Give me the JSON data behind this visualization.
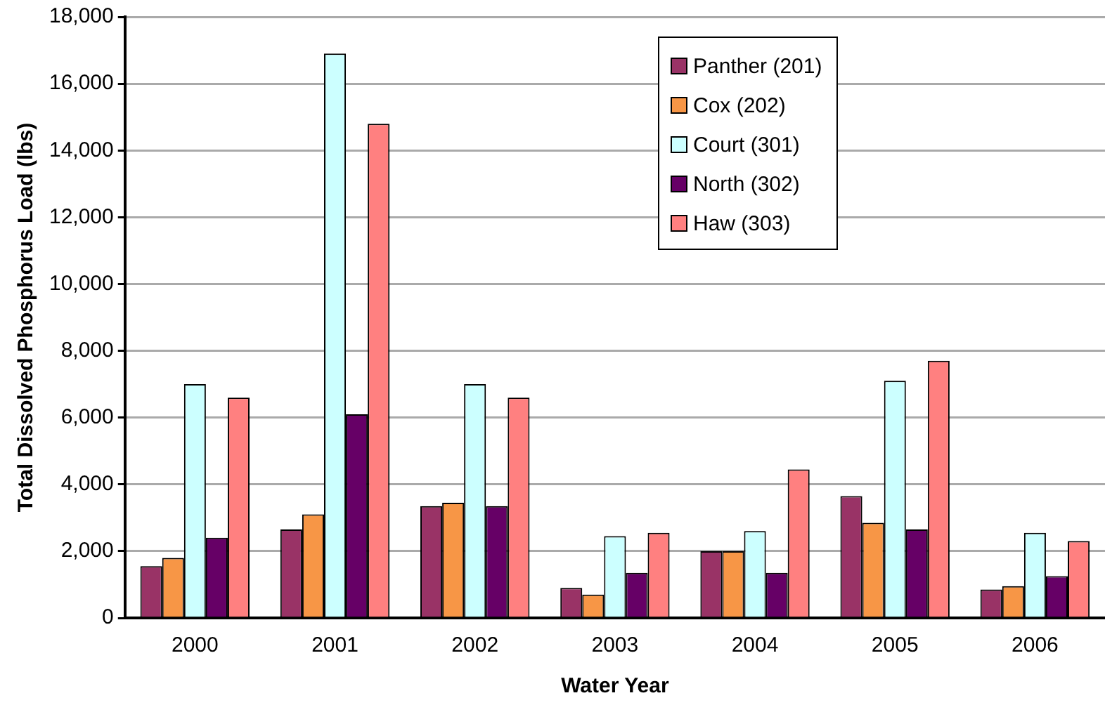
{
  "chart_data": {
    "type": "bar",
    "xlabel": "Water Year",
    "ylabel": "Total Dissolved Phosphorus Load (lbs)",
    "categories": [
      "2000",
      "2001",
      "2002",
      "2003",
      "2004",
      "2005",
      "2006"
    ],
    "series": [
      {
        "name": "Panther (201)",
        "color": "#993366",
        "values": [
          1550,
          2650,
          3350,
          900,
          2000,
          3650,
          850
        ]
      },
      {
        "name": "Cox (202)",
        "color": "#f79646",
        "values": [
          1800,
          3100,
          3450,
          700,
          2000,
          2850,
          950
        ]
      },
      {
        "name": "Court (301)",
        "color": "#ccffff",
        "values": [
          7000,
          16900,
          7000,
          2450,
          2600,
          7100,
          2550
        ]
      },
      {
        "name": "North (302)",
        "color": "#660066",
        "values": [
          2400,
          6100,
          3350,
          1350,
          1350,
          2650,
          1250
        ]
      },
      {
        "name": "Haw (303)",
        "color": "#ff8080",
        "values": [
          6600,
          14800,
          6600,
          2550,
          4450,
          7700,
          2300
        ]
      }
    ],
    "ylim": [
      0,
      18000
    ],
    "yticks": [
      0,
      {
        "value": 2000,
        "label": "2,000"
      },
      {
        "value": 4000,
        "label": "4,000"
      },
      {
        "value": 6000,
        "label": "6,000"
      },
      {
        "value": 8000,
        "label": "8,000"
      },
      {
        "value": 10000,
        "label": "10,000"
      },
      {
        "value": 12000,
        "label": "12,000"
      },
      {
        "value": 14000,
        "label": "14,000"
      },
      {
        "value": 16000,
        "label": "16,000"
      },
      {
        "value": 18000,
        "label": "18,000"
      }
    ],
    "grid": "y",
    "legend": "top right"
  }
}
